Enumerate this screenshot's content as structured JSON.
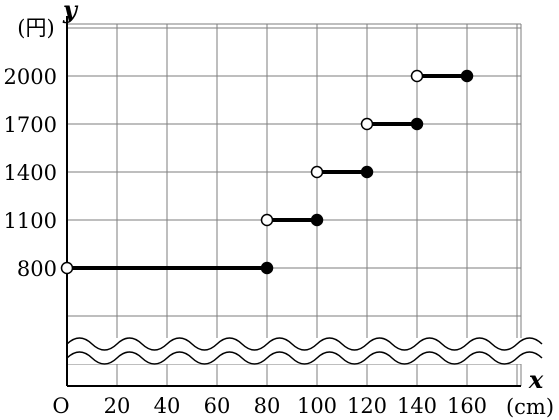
{
  "chart_data": {
    "type": "line",
    "xlabel": "x",
    "ylabel": "y",
    "x_unit": "(cm)",
    "y_unit": "(円)",
    "origin_label": "O",
    "x_ticks": [
      20,
      40,
      60,
      80,
      100,
      120,
      140,
      160
    ],
    "y_ticks": [
      800,
      1100,
      1400,
      1700,
      2000
    ],
    "xlim": [
      0,
      180
    ],
    "axis_break": true,
    "grid": true,
    "series": [
      {
        "style": "step",
        "segments": [
          {
            "x": [
              0,
              80
            ],
            "y": 800,
            "start": "open",
            "end": "closed"
          },
          {
            "x": [
              80,
              100
            ],
            "y": 1100,
            "start": "open",
            "end": "closed"
          },
          {
            "x": [
              100,
              120
            ],
            "y": 1400,
            "start": "open",
            "end": "closed"
          },
          {
            "x": [
              120,
              140
            ],
            "y": 1700,
            "start": "open",
            "end": "closed"
          },
          {
            "x": [
              140,
              160
            ],
            "y": 2000,
            "start": "open",
            "end": "closed"
          }
        ]
      }
    ]
  }
}
